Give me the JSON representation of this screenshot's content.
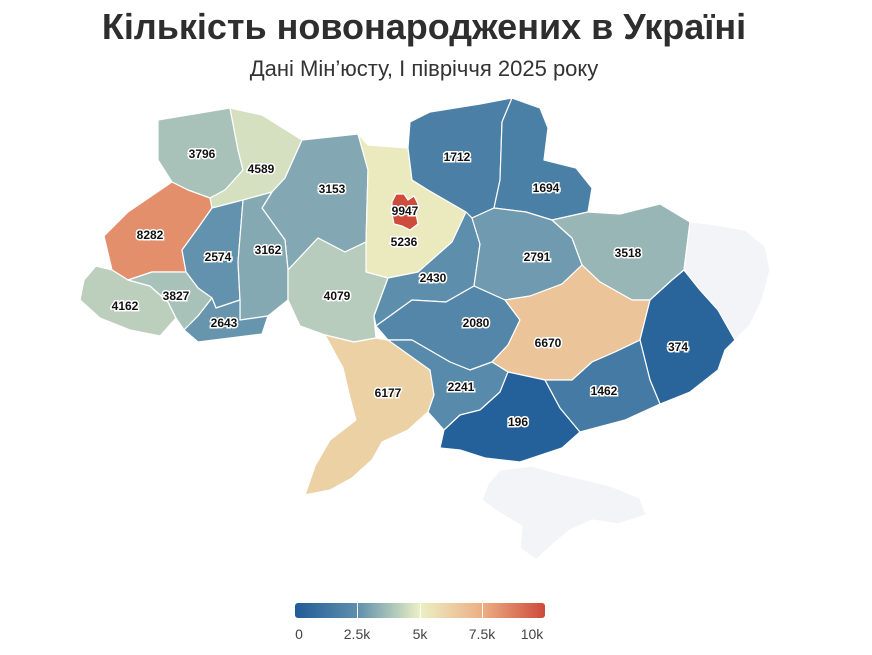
{
  "header": {
    "title": "Кількість новонароджених в Україні",
    "subtitle": "Дані Мін’юсту, І півріччя 2025 року"
  },
  "legend": {
    "min": 0,
    "max": 10000,
    "tick_labels": [
      "0",
      "2.5k",
      "5k",
      "7.5k",
      "10k"
    ],
    "colors": [
      "#1f5c97",
      "#5f8fad",
      "#ebf0c4",
      "#edae83",
      "#cc4a3a"
    ]
  },
  "map_data": {
    "no_data_color": "#f3f4f7",
    "regions": [
      {
        "id": "volyn",
        "value": "3796"
      },
      {
        "id": "rivne",
        "value": "4589"
      },
      {
        "id": "zhytomyr",
        "value": "3153"
      },
      {
        "id": "kyiv-oblast",
        "value": "5236"
      },
      {
        "id": "kyiv-city",
        "value": "9947"
      },
      {
        "id": "chernihiv",
        "value": "1712"
      },
      {
        "id": "sumy",
        "value": "1694"
      },
      {
        "id": "lviv",
        "value": "8282"
      },
      {
        "id": "ternopil",
        "value": "2574"
      },
      {
        "id": "khmelnytskyi",
        "value": "3162"
      },
      {
        "id": "zakarpattia",
        "value": "4162"
      },
      {
        "id": "ivano-frankivsk",
        "value": "3827"
      },
      {
        "id": "chernivtsi",
        "value": "2643"
      },
      {
        "id": "vinnytsia",
        "value": "4079"
      },
      {
        "id": "cherkasy",
        "value": "2430"
      },
      {
        "id": "poltava",
        "value": "2791"
      },
      {
        "id": "kharkiv",
        "value": "3518"
      },
      {
        "id": "kirovohrad",
        "value": "2080"
      },
      {
        "id": "dnipropetrovsk",
        "value": "6670"
      },
      {
        "id": "donetsk",
        "value": "374"
      },
      {
        "id": "luhansk",
        "value": ""
      },
      {
        "id": "odesa",
        "value": "6177"
      },
      {
        "id": "mykolaiv",
        "value": "2241"
      },
      {
        "id": "kherson",
        "value": "196"
      },
      {
        "id": "zaporizhzhia",
        "value": "1462"
      },
      {
        "id": "crimea",
        "value": ""
      }
    ]
  }
}
